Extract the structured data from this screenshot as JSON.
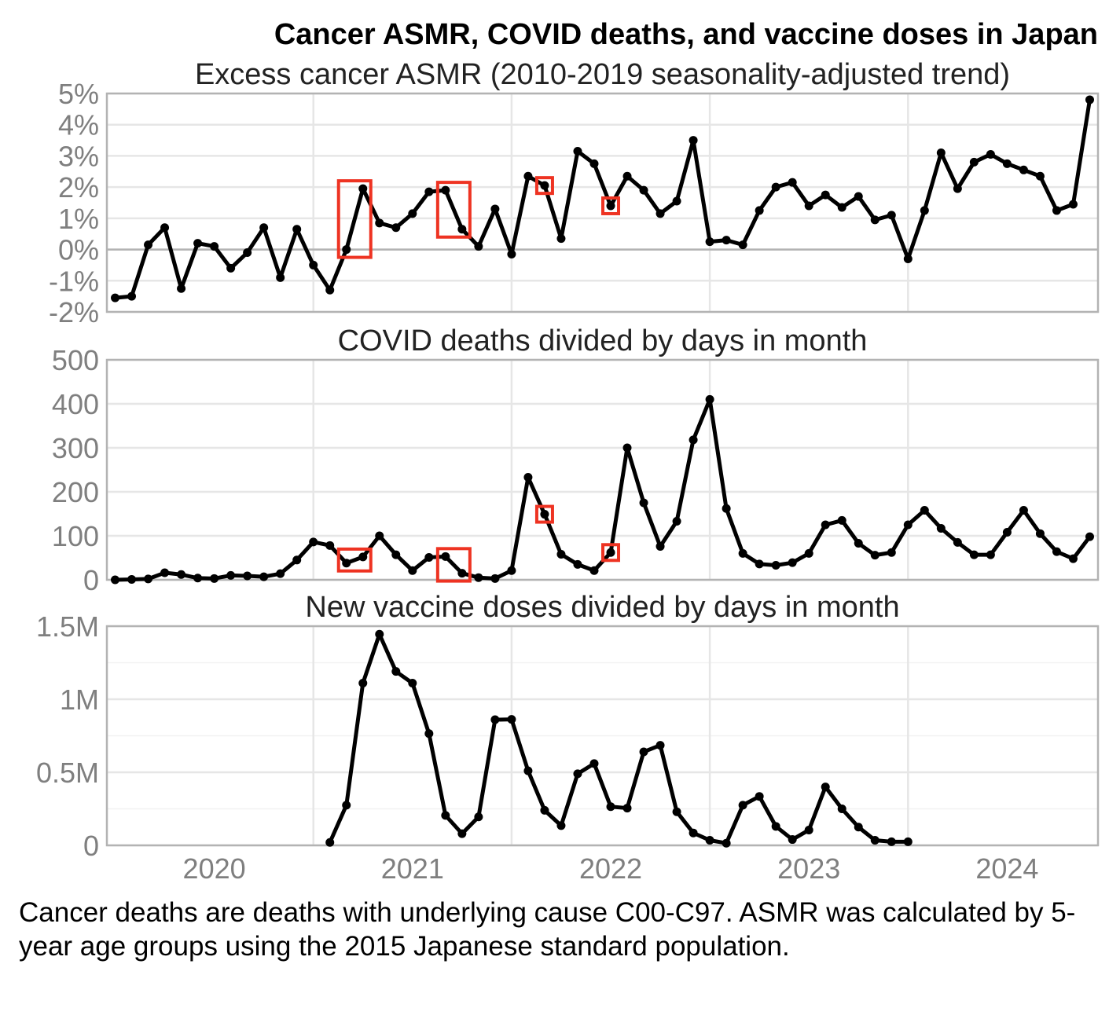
{
  "title": "Cancer ASMR, COVID deaths, and vaccine doses in Japan",
  "caption": "Cancer deaths are deaths with underlying cause C00-C97. ASMR was calculated by 5-year age groups using the 2015 Japanese standard population.",
  "colors": {
    "line": "#000000",
    "highlight": "#ee3322",
    "grid": "#e6e6e6",
    "frame": "#b3b3b3",
    "tick_text": "#7f7f7f"
  },
  "chart_data": [
    {
      "type": "line",
      "title": "Excess cancer ASMR (2010-2019 seasonality-adjusted trend)",
      "x_start": "2020-01",
      "ylim": [
        -2,
        5
      ],
      "y_ticks": [
        -2,
        -1,
        0,
        1,
        2,
        3,
        4,
        5
      ],
      "y_tick_labels": [
        "-2%",
        "-1%",
        "0%",
        "1%",
        "2%",
        "3%",
        "4%",
        "5%"
      ],
      "values": [
        -1.55,
        -1.5,
        0.15,
        0.7,
        -1.25,
        0.2,
        0.1,
        -0.6,
        -0.1,
        0.7,
        -0.9,
        0.65,
        -0.5,
        -1.3,
        0.0,
        1.95,
        0.85,
        0.7,
        1.15,
        1.85,
        1.9,
        0.65,
        0.1,
        1.3,
        -0.15,
        2.35,
        2.05,
        0.35,
        3.15,
        2.75,
        1.4,
        2.35,
        1.9,
        1.15,
        1.55,
        3.5,
        0.25,
        0.3,
        0.15,
        1.25,
        2.0,
        2.15,
        1.4,
        1.75,
        1.35,
        1.7,
        0.95,
        1.1,
        -0.3,
        1.25,
        3.1,
        1.95,
        2.8,
        3.05,
        2.75,
        2.55,
        2.35,
        1.25,
        1.45,
        4.8
      ],
      "highlight_boxes": [
        [
          "2021-03",
          "2021-04"
        ],
        [
          "2021-09",
          "2021-10"
        ],
        [
          "2022-03",
          "2022-03"
        ],
        [
          "2022-07",
          "2022-07"
        ]
      ]
    },
    {
      "type": "line",
      "title": "COVID deaths divided by days in month",
      "x_start": "2020-01",
      "ylim": [
        0,
        500
      ],
      "y_ticks": [
        0,
        100,
        200,
        300,
        400,
        500
      ],
      "y_tick_labels": [
        "0",
        "100",
        "200",
        "300",
        "400",
        "500"
      ],
      "values": [
        0,
        1,
        2,
        16,
        12,
        4,
        3,
        10,
        9,
        7,
        14,
        45,
        86,
        78,
        38,
        52,
        100,
        57,
        21,
        51,
        53,
        15,
        5,
        3,
        21,
        233,
        149,
        58,
        35,
        21,
        62,
        300,
        175,
        76,
        133,
        318,
        410,
        162,
        60,
        36,
        33,
        39,
        60,
        125,
        135,
        83,
        56,
        62,
        125,
        158,
        117,
        85,
        57,
        57,
        108,
        158,
        105,
        64,
        48,
        98
      ],
      "highlight_boxes": [
        [
          "2021-03",
          "2021-04"
        ],
        [
          "2021-09",
          "2021-10"
        ],
        [
          "2022-03",
          "2022-03"
        ],
        [
          "2022-07",
          "2022-07"
        ]
      ]
    },
    {
      "type": "line",
      "title": "New vaccine doses divided by days in month",
      "x_start": "2021-02",
      "ylim": [
        0,
        1500000
      ],
      "y_ticks": [
        0,
        500000,
        1000000,
        1500000
      ],
      "y_tick_labels": [
        "0",
        "0.5M",
        "1M",
        "1.5M"
      ],
      "x_ticks": [
        "2020",
        "2021",
        "2022",
        "2023",
        "2024"
      ],
      "values": [
        20000,
        275000,
        1110000,
        1445000,
        1190000,
        1110000,
        765000,
        205000,
        80000,
        195000,
        860000,
        862000,
        510000,
        240000,
        135000,
        490000,
        560000,
        265000,
        255000,
        640000,
        685000,
        230000,
        85000,
        35000,
        15000,
        275000,
        335000,
        130000,
        40000,
        105000,
        400000,
        250000,
        125000,
        35000,
        25000,
        25000
      ]
    }
  ]
}
